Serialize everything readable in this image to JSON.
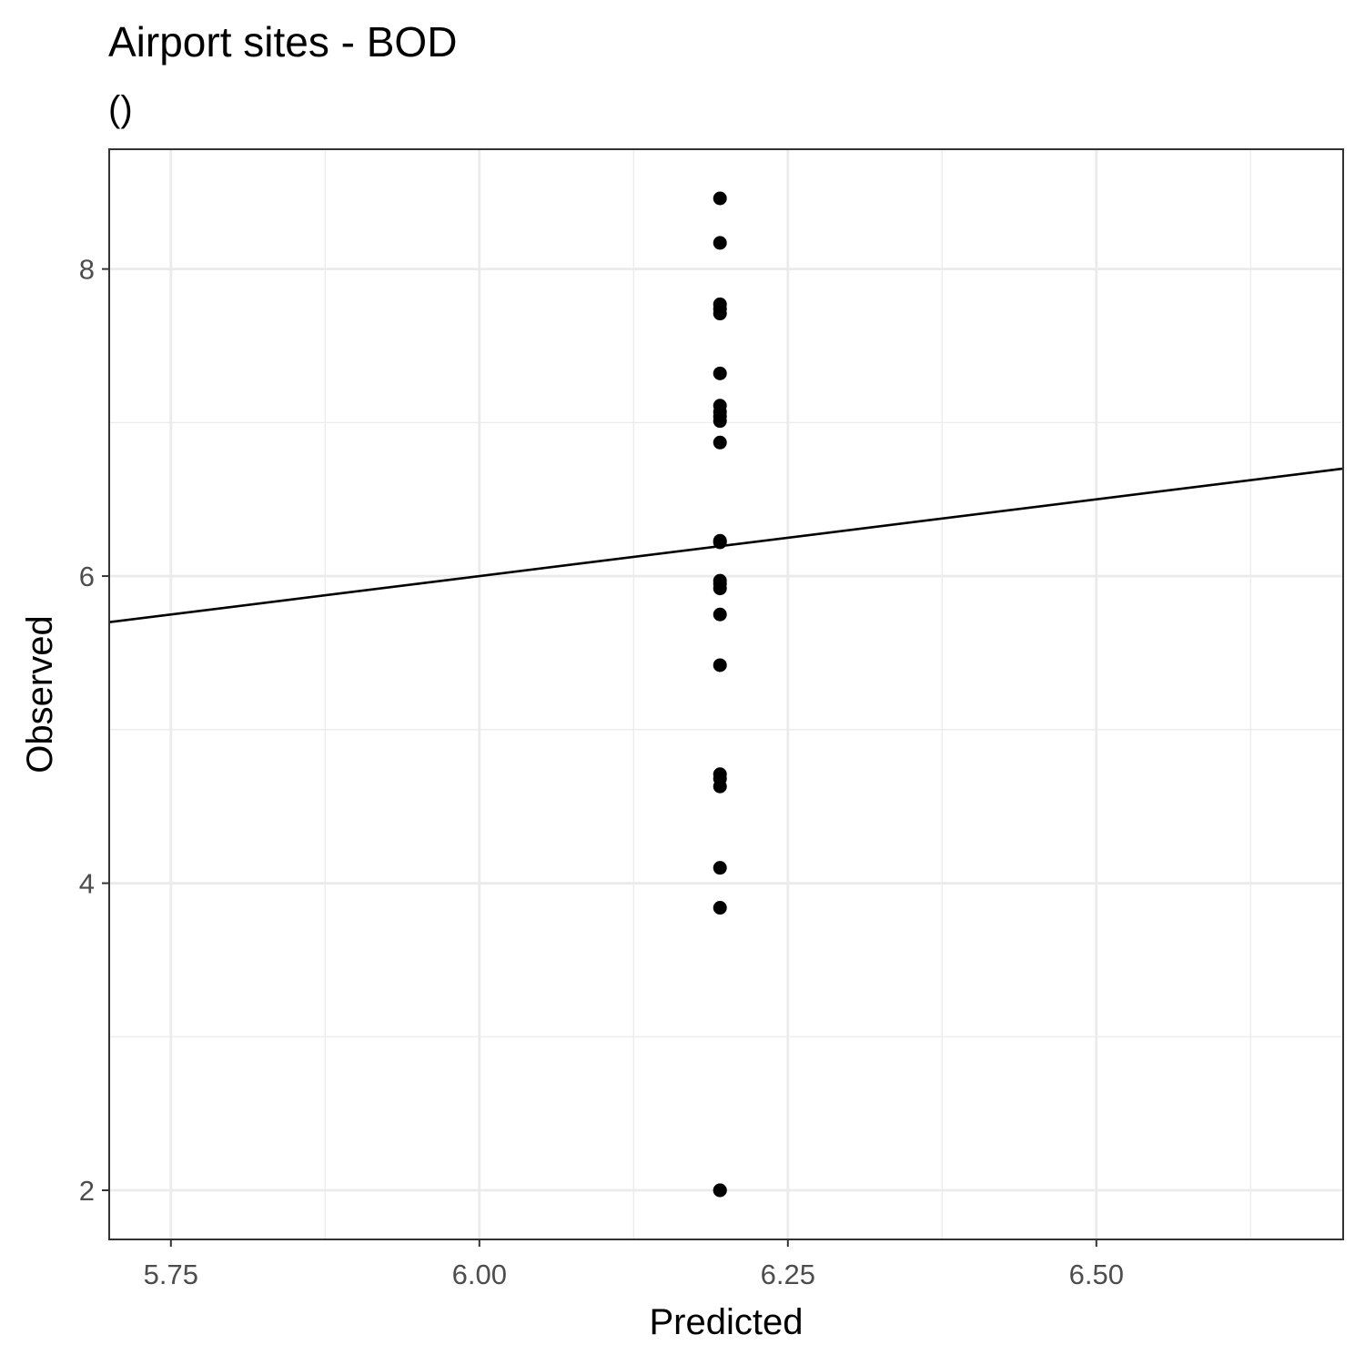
{
  "chart_data": {
    "type": "scatter",
    "title": "Airport sites - BOD",
    "subtitle": "()",
    "xlabel": "Predicted",
    "ylabel": "Observed",
    "xlim": [
      5.7,
      6.7
    ],
    "ylim": [
      1.68,
      8.78
    ],
    "x_ticks": [
      5.75,
      6.0,
      6.25,
      6.5
    ],
    "x_tick_labels": [
      "5.75",
      "6.00",
      "6.25",
      "6.50"
    ],
    "x_minor_ticks": [
      5.875,
      6.125,
      6.375,
      6.625
    ],
    "y_ticks": [
      2,
      4,
      6,
      8
    ],
    "y_tick_labels": [
      "2",
      "4",
      "6",
      "8"
    ],
    "y_minor_ticks": [
      3,
      5,
      7
    ],
    "grid": true,
    "reference_line": {
      "slope": 1,
      "intercept": 0
    },
    "colors": {
      "points": "#000000",
      "line": "#000000",
      "grid": "#ebebeb",
      "panel_border": "#333333"
    },
    "series": [
      {
        "x": [
          6.195,
          6.195,
          6.195,
          6.195,
          6.195,
          6.195,
          6.195,
          6.195,
          6.195,
          6.195,
          6.195,
          6.195,
          6.195,
          6.195,
          6.195,
          6.195,
          6.195,
          6.195,
          6.195,
          6.195,
          6.195,
          6.195,
          6.195,
          6.195,
          6.195
        ],
        "y": [
          8.46,
          8.17,
          7.77,
          7.74,
          7.71,
          7.32,
          7.11,
          7.07,
          7.04,
          7.01,
          6.87,
          6.23,
          6.22,
          5.97,
          5.95,
          5.92,
          5.75,
          5.42,
          4.71,
          4.68,
          4.63,
          4.1,
          3.84,
          2.0,
          2.0
        ]
      }
    ]
  }
}
